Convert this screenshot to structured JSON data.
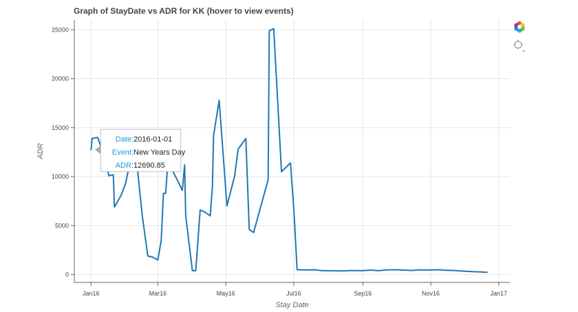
{
  "chart_title": "Graph of StayDate vs ADR for KK (hover to view events)",
  "chart_data": {
    "type": "line",
    "title": "Graph of StayDate vs ADR for KK (hover to view events)",
    "xlabel": "Stay Date",
    "ylabel": "ADR",
    "x_ticks": [
      "Jan16",
      "Mar16",
      "May16",
      "Jul16",
      "Sep16",
      "Nov16",
      "Jan17"
    ],
    "y_ticks": [
      0,
      5000,
      10000,
      15000,
      20000,
      25000
    ],
    "ylim": [
      -800,
      26000
    ],
    "xlim": [
      "2015-12-17",
      "2017-01-11"
    ],
    "grid": true,
    "series": [
      {
        "color": "#1f77b4",
        "x": [
          "2016-01-01",
          "2016-01-02",
          "2016-01-07",
          "2016-01-12",
          "2016-01-17",
          "2016-01-21",
          "2016-01-22",
          "2016-01-28",
          "2016-02-01",
          "2016-02-06",
          "2016-02-11",
          "2016-02-16",
          "2016-02-21",
          "2016-02-25",
          "2016-03-01",
          "2016-03-04",
          "2016-03-06",
          "2016-03-08",
          "2016-03-10",
          "2016-03-23",
          "2016-03-25",
          "2016-03-26",
          "2016-04-01",
          "2016-04-04",
          "2016-04-08",
          "2016-04-12",
          "2016-04-17",
          "2016-04-19",
          "2016-04-20",
          "2016-04-25",
          "2016-05-02",
          "2016-05-09",
          "2016-05-12",
          "2016-05-19",
          "2016-05-22",
          "2016-05-26",
          "2016-06-08",
          "2016-06-09",
          "2016-06-13",
          "2016-06-20",
          "2016-06-28",
          "2016-07-01",
          "2016-07-04",
          "2016-07-08",
          "2016-07-19",
          "2016-07-22",
          "2016-07-25",
          "2016-08-15",
          "2016-08-22",
          "2016-09-01",
          "2016-09-08",
          "2016-09-15",
          "2016-09-22",
          "2016-10-01",
          "2016-10-08",
          "2016-10-15",
          "2016-10-20",
          "2016-10-22",
          "2016-10-26",
          "2016-11-01",
          "2016-11-08",
          "2016-11-15",
          "2016-11-22",
          "2016-12-01",
          "2016-12-08",
          "2016-12-15",
          "2016-12-22"
        ],
        "y": [
          12690.85,
          13900,
          14000,
          12400,
          10100,
          10200,
          6900,
          8100,
          9300,
          12000,
          11500,
          6000,
          1900,
          1800,
          1500,
          3500,
          8300,
          8300,
          11600,
          8600,
          11200,
          6000,
          400,
          400,
          6600,
          6400,
          6000,
          9000,
          14200,
          17800,
          7000,
          10100,
          12800,
          13900,
          4600,
          4300,
          9700,
          24900,
          25100,
          10500,
          11400,
          6800,
          500,
          480,
          490,
          480,
          410,
          380,
          420,
          400,
          460,
          400,
          480,
          500,
          460,
          420,
          470,
          490,
          470,
          470,
          500,
          450,
          420,
          350,
          300,
          280,
          240
        ]
      }
    ]
  },
  "tooltip": {
    "date_label": "Date:",
    "date_value": "2016-01-01",
    "event_label": "Event:",
    "event_value": "New Years Day",
    "adr_label": "ADR:",
    "adr_value": "12690.85"
  },
  "toolbar": {
    "icons": [
      "bokeh-logo-icon",
      "crosshair-hover-icon"
    ]
  }
}
